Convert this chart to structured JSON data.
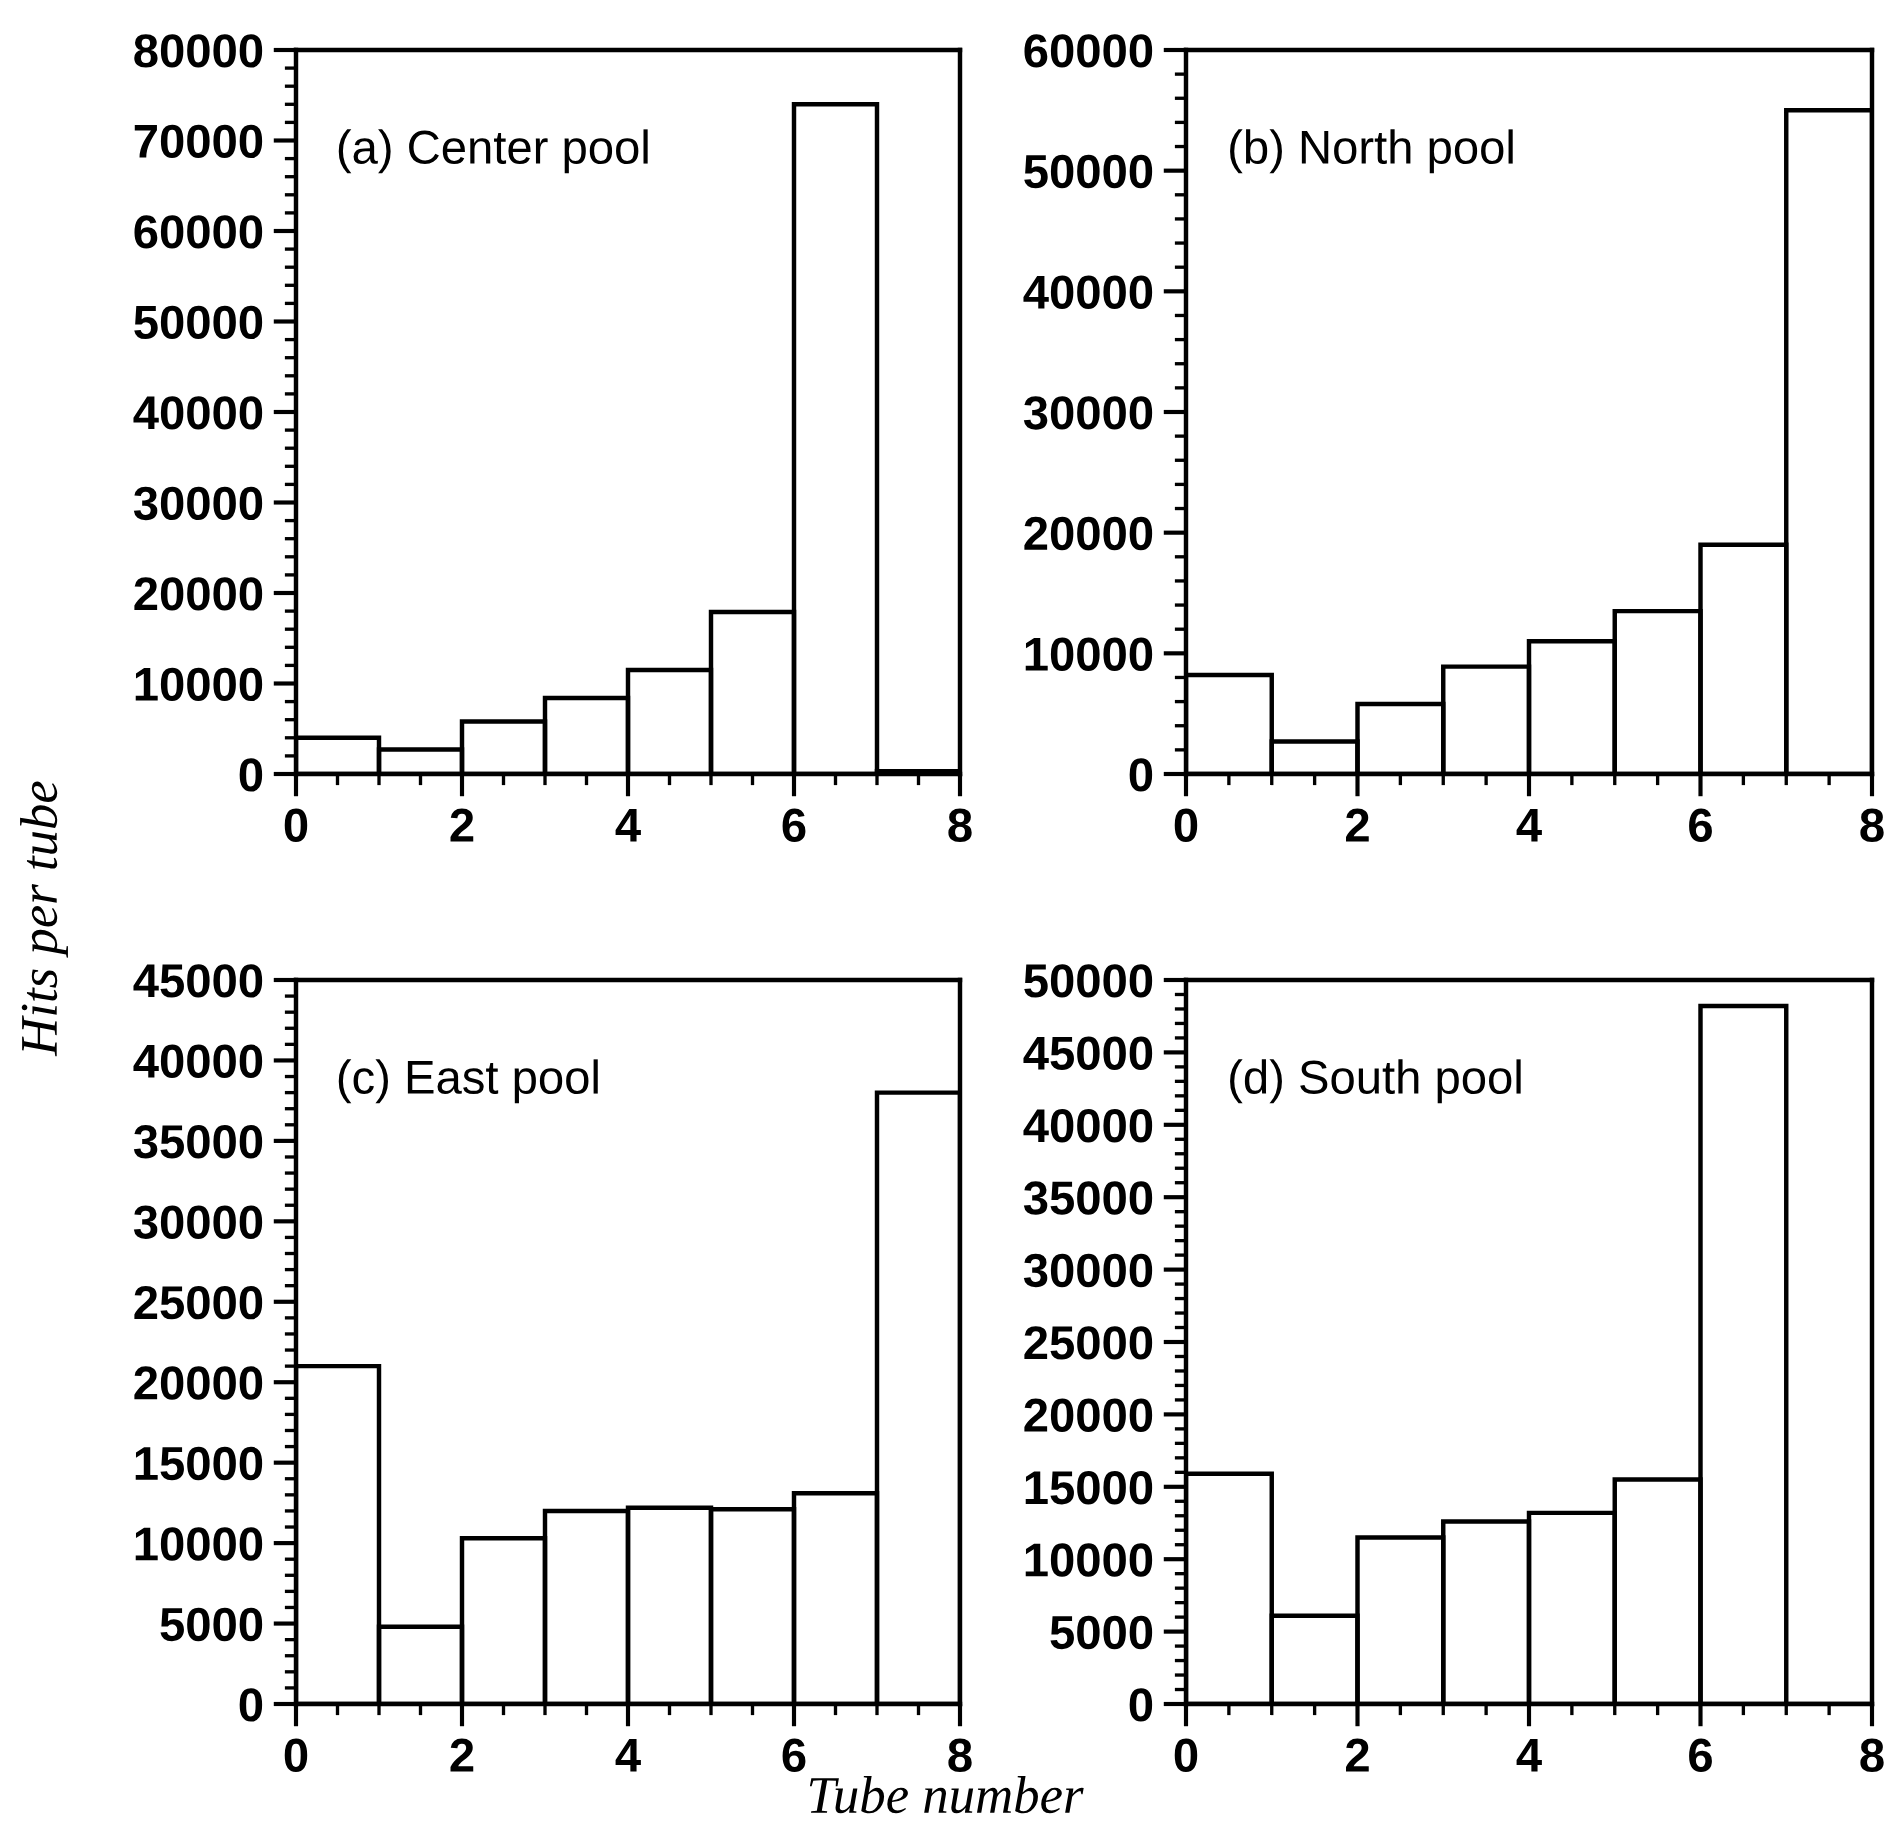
{
  "chart_data": [
    {
      "type": "histogram",
      "bins": [
        0,
        1,
        2,
        3,
        4,
        5,
        6,
        7,
        8
      ],
      "values": [
        4000,
        2700,
        5800,
        8400,
        11500,
        17900,
        74000,
        300
      ],
      "color": "#000000",
      "xlim": [
        0,
        8
      ],
      "xticks": [
        0,
        2,
        4,
        6,
        8
      ],
      "ylim": [
        0,
        80000
      ],
      "yticks": [
        0,
        10000,
        20000,
        30000,
        40000,
        50000,
        60000,
        70000,
        80000
      ],
      "annotations": [
        "(a) Center pool"
      ],
      "ylabel": "Hits per tube"
    },
    {
      "type": "histogram",
      "bins": [
        0,
        1,
        2,
        3,
        4,
        5,
        6,
        7,
        8
      ],
      "values": [
        8200,
        2700,
        5800,
        8900,
        11000,
        13500,
        19000,
        55000
      ],
      "color": "#000000",
      "xlim": [
        0,
        8
      ],
      "xticks": [
        0,
        2,
        4,
        6,
        8
      ],
      "ylim": [
        0,
        60000
      ],
      "yticks": [
        0,
        10000,
        20000,
        30000,
        40000,
        50000,
        60000
      ],
      "annotations": [
        "(b) North pool"
      ]
    },
    {
      "type": "histogram",
      "bins": [
        0,
        1,
        2,
        3,
        4,
        5,
        6,
        7,
        8
      ],
      "values": [
        21000,
        4800,
        10300,
        12000,
        12200,
        12100,
        13100,
        38000
      ],
      "color": "#000000",
      "xlim": [
        0,
        8
      ],
      "xticks": [
        0,
        2,
        4,
        6,
        8
      ],
      "ylim": [
        0,
        45000
      ],
      "yticks": [
        0,
        5000,
        10000,
        15000,
        20000,
        25000,
        30000,
        35000,
        40000,
        45000
      ],
      "annotations": [
        "(c) East pool"
      ],
      "xlabel": "Tube number"
    },
    {
      "type": "histogram",
      "bins": [
        0,
        1,
        2,
        3,
        4,
        5,
        6,
        7,
        8
      ],
      "values": [
        15900,
        6100,
        11500,
        12600,
        13200,
        15500,
        48200,
        0
      ],
      "color": "#000000",
      "xlim": [
        0,
        8
      ],
      "xticks": [
        0,
        2,
        4,
        6,
        8
      ],
      "ylim": [
        0,
        50000
      ],
      "yticks": [
        0,
        5000,
        10000,
        15000,
        20000,
        25000,
        30000,
        35000,
        40000,
        45000,
        50000
      ],
      "annotations": [
        "(d) South pool"
      ]
    }
  ]
}
